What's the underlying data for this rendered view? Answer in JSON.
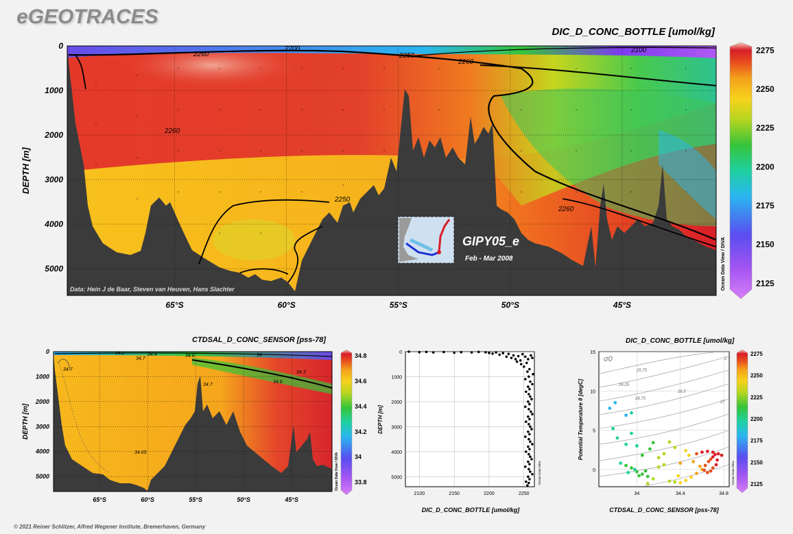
{
  "brand": "eGEOTRACES",
  "copyright": "© 2021 Reiner Schlitzer, Alfred Wegener Institute, Bremerhaven, Germany",
  "colors": {
    "scale": [
      "#d77ef7",
      "#8f3ff0",
      "#4a54ee",
      "#2ab6f0",
      "#1fd0a0",
      "#36c43a",
      "#b6d61f",
      "#f6d21d",
      "#f4a21a",
      "#e8501e",
      "#d81d28",
      "#f9c9b7"
    ],
    "bathymetry": "#3b3b3b"
  },
  "main_section": {
    "title": "DIC_D_CONC_BOTTLE [umol/kg]",
    "ylabel": "DEPTH [m]",
    "side_label": "Ocean Data View / DIVA",
    "credit": "Data: Hein J de Baar, Steven van Heuven, Hans Slachter",
    "inset": {
      "cruise": "GIPY05_e",
      "dates": "Feb - Mar 2008"
    },
    "contour_labels": [
      "2200",
      "2250",
      "2260",
      "2100",
      "2260",
      "2260",
      "2250",
      "2260"
    ]
  },
  "sal_section": {
    "title": "CTDSAL_D_CONC_SENSOR [pss-78]",
    "ylabel": "DEPTH [m]",
    "side_label": "Ocean Data View / DIVA",
    "contour_labels": [
      "34.7",
      "34.7",
      "34.2",
      "34.4",
      "34.6",
      "34.7",
      "34.6",
      "34.3",
      "34.65",
      "34"
    ]
  },
  "scatter_profile": {
    "xlabel": "DIC_D_CONC_BOTTLE [umol/kg]",
    "ylabel": "DEPTH [m]",
    "side_label": "Ocean Data View"
  },
  "ts_plot": {
    "title": "DIC_D_CONC_BOTTLE [umol/kg]",
    "xlabel": "CTDSAL_D_CONC_SENSOR [pss-78]",
    "ylabel": "Potential Temperature θ [degC]",
    "side_label": "Ocean Data View",
    "sigma_label": "σ0",
    "isopycnals": [
      "25.75",
      "26.25",
      "26.75",
      "26.5",
      "27",
      "2"
    ]
  },
  "chart_data": [
    {
      "type": "heatmap",
      "title": "DIC_D_CONC_BOTTLE [umol/kg]",
      "ylabel": "DEPTH [m]",
      "x_ticks": [
        "65°S",
        "60°S",
        "55°S",
        "50°S",
        "45°S"
      ],
      "x_values": [
        -65,
        -60,
        -55,
        -50,
        -45
      ],
      "xlim": [
        -69.8,
        -40.8
      ],
      "y_ticks": [
        0,
        1000,
        2000,
        3000,
        4000,
        5000
      ],
      "ylim": [
        0,
        5600
      ],
      "colorbar": {
        "ticks": [
          2275,
          2250,
          2225,
          2200,
          2175,
          2150,
          2125
        ],
        "range": [
          2115,
          2280
        ]
      }
    },
    {
      "type": "heatmap",
      "title": "CTDSAL_D_CONC_SENSOR [pss-78]",
      "ylabel": "DEPTH [m]",
      "x_ticks": [
        "65°S",
        "60°S",
        "55°S",
        "50°S",
        "45°S"
      ],
      "x_values": [
        -65,
        -60,
        -55,
        -50,
        -45
      ],
      "xlim": [
        -69.8,
        -40.8
      ],
      "y_ticks": [
        0,
        1000,
        2000,
        3000,
        4000,
        5000
      ],
      "ylim": [
        0,
        5600
      ],
      "colorbar": {
        "ticks": [
          34.8,
          34.6,
          34.4,
          34.2,
          34,
          33.8
        ],
        "range": [
          33.7,
          34.85
        ]
      }
    },
    {
      "type": "scatter",
      "xlabel": "DIC_D_CONC_BOTTLE [umol/kg]",
      "ylabel": "DEPTH [m]",
      "x_ticks": [
        2100,
        2150,
        2200,
        2250
      ],
      "xlim": [
        2080,
        2265
      ],
      "y_ticks": [
        0,
        1000,
        2000,
        3000,
        4000,
        5000
      ],
      "ylim": [
        0,
        5400
      ],
      "points": [
        [
          2085,
          0
        ],
        [
          2100,
          20
        ],
        [
          2110,
          10
        ],
        [
          2120,
          30
        ],
        [
          2135,
          15
        ],
        [
          2150,
          40
        ],
        [
          2160,
          20
        ],
        [
          2175,
          30
        ],
        [
          2185,
          10
        ],
        [
          2195,
          25
        ],
        [
          2200,
          50
        ],
        [
          2205,
          80
        ],
        [
          2210,
          30
        ],
        [
          2215,
          120
        ],
        [
          2220,
          60
        ],
        [
          2225,
          200
        ],
        [
          2228,
          90
        ],
        [
          2232,
          250
        ],
        [
          2235,
          150
        ],
        [
          2238,
          300
        ],
        [
          2240,
          400
        ],
        [
          2242,
          180
        ],
        [
          2245,
          350
        ],
        [
          2246,
          500
        ],
        [
          2248,
          100
        ],
        [
          2250,
          600
        ],
        [
          2252,
          200
        ],
        [
          2254,
          450
        ],
        [
          2255,
          800
        ],
        [
          2256,
          300
        ],
        [
          2258,
          700
        ],
        [
          2260,
          150
        ],
        [
          2262,
          250
        ],
        [
          2257,
          1000
        ],
        [
          2259,
          1200
        ],
        [
          2256,
          1400
        ],
        [
          2258,
          1500
        ],
        [
          2257,
          1700
        ],
        [
          2259,
          1800
        ],
        [
          2256,
          2000
        ],
        [
          2258,
          2100
        ],
        [
          2257,
          2300
        ],
        [
          2260,
          2400
        ],
        [
          2256,
          2600
        ],
        [
          2258,
          2700
        ],
        [
          2257,
          2900
        ],
        [
          2259,
          3000
        ],
        [
          2256,
          3200
        ],
        [
          2258,
          3300
        ],
        [
          2257,
          3500
        ],
        [
          2259,
          3600
        ],
        [
          2256,
          3800
        ],
        [
          2258,
          3900
        ],
        [
          2257,
          4100
        ],
        [
          2259,
          4200
        ],
        [
          2256,
          4400
        ],
        [
          2258,
          4500
        ],
        [
          2257,
          4700
        ],
        [
          2259,
          4800
        ],
        [
          2256,
          5000
        ],
        [
          2258,
          5100
        ],
        [
          2257,
          5250
        ],
        [
          2255,
          5350
        ],
        [
          2263,
          900
        ],
        [
          2262,
          1300
        ],
        [
          2261,
          1900
        ],
        [
          2262,
          2500
        ],
        [
          2261,
          3100
        ],
        [
          2262,
          3700
        ],
        [
          2261,
          4300
        ],
        [
          2262,
          4900
        ],
        [
          2252,
          1100
        ],
        [
          2253,
          1600
        ],
        [
          2252,
          2200
        ],
        [
          2253,
          2800
        ],
        [
          2252,
          3400
        ],
        [
          2253,
          4000
        ],
        [
          2252,
          4600
        ],
        [
          2253,
          5200
        ]
      ]
    },
    {
      "type": "scatter",
      "title": "DIC_D_CONC_BOTTLE [umol/kg]",
      "xlabel": "CTDSAL_D_CONC_SENSOR [pss-78]",
      "ylabel": "Potential Temperature θ [degC]",
      "x_ticks": [
        34,
        34.4,
        34.8
      ],
      "xlim": [
        33.65,
        34.85
      ],
      "y_ticks": [
        0,
        5,
        10,
        15
      ],
      "ylim": [
        -2.2,
        15
      ],
      "colorbar": {
        "ticks": [
          2275,
          2250,
          2225,
          2200,
          2175,
          2150,
          2125
        ],
        "range": [
          2115,
          2280
        ]
      },
      "points": [
        [
          33.75,
          7.8,
          2160
        ],
        [
          33.8,
          8.5,
          2155
        ],
        [
          33.9,
          6.9,
          2165
        ],
        [
          33.95,
          7.2,
          2170
        ],
        [
          33.78,
          5.2,
          2175
        ],
        [
          33.82,
          4.0,
          2170
        ],
        [
          33.9,
          3.2,
          2180
        ],
        [
          33.95,
          4.6,
          2175
        ],
        [
          34.0,
          3.0,
          2180
        ],
        [
          34.05,
          1.8,
          2185
        ],
        [
          33.85,
          0.8,
          2180
        ],
        [
          33.9,
          0.5,
          2185
        ],
        [
          33.95,
          0.2,
          2190
        ],
        [
          34.0,
          -0.3,
          2185
        ],
        [
          34.05,
          -0.6,
          2190
        ],
        [
          34.1,
          -0.9,
          2195
        ],
        [
          33.92,
          -0.4,
          2180
        ],
        [
          33.98,
          0.0,
          2182
        ],
        [
          34.02,
          -0.8,
          2188
        ],
        [
          34.08,
          -0.2,
          2192
        ],
        [
          34.12,
          2.6,
          2190
        ],
        [
          34.15,
          3.4,
          2185
        ],
        [
          34.2,
          1.5,
          2200
        ],
        [
          34.25,
          0.6,
          2205
        ],
        [
          34.3,
          -1.5,
          2210
        ],
        [
          34.35,
          -1.6,
          2212
        ],
        [
          34.4,
          -1.7,
          2215
        ],
        [
          34.45,
          -1.4,
          2220
        ],
        [
          34.5,
          -1.0,
          2225
        ],
        [
          34.55,
          -0.5,
          2230
        ],
        [
          34.6,
          0.0,
          2240
        ],
        [
          34.63,
          0.5,
          2245
        ],
        [
          34.66,
          1.0,
          2250
        ],
        [
          34.68,
          1.3,
          2255
        ],
        [
          34.7,
          1.6,
          2258
        ],
        [
          34.72,
          1.9,
          2260
        ],
        [
          34.74,
          1.2,
          2262
        ],
        [
          34.73,
          0.6,
          2258
        ],
        [
          34.7,
          0.2,
          2255
        ],
        [
          34.68,
          -0.2,
          2252
        ],
        [
          34.65,
          -0.4,
          2250
        ],
        [
          34.62,
          -0.1,
          2248
        ],
        [
          34.58,
          0.4,
          2242
        ],
        [
          34.52,
          1.0,
          2232
        ],
        [
          34.48,
          1.8,
          2225
        ],
        [
          34.45,
          2.4,
          2220
        ],
        [
          34.55,
          2.0,
          2250
        ],
        [
          34.6,
          2.2,
          2262
        ],
        [
          34.65,
          2.3,
          2265
        ],
        [
          34.7,
          2.2,
          2268
        ],
        [
          34.75,
          2.0,
          2266
        ],
        [
          34.78,
          1.8,
          2262
        ],
        [
          34.4,
          0.8,
          2230
        ],
        [
          34.35,
          2.8,
          2210
        ],
        [
          34.3,
          3.5,
          2205
        ],
        [
          34.25,
          2.0,
          2200
        ],
        [
          34.2,
          0.3,
          2198
        ],
        [
          34.15,
          -1.2,
          2200
        ],
        [
          34.1,
          -1.8,
          2200
        ],
        [
          34.38,
          -0.8,
          2222
        ]
      ]
    }
  ]
}
